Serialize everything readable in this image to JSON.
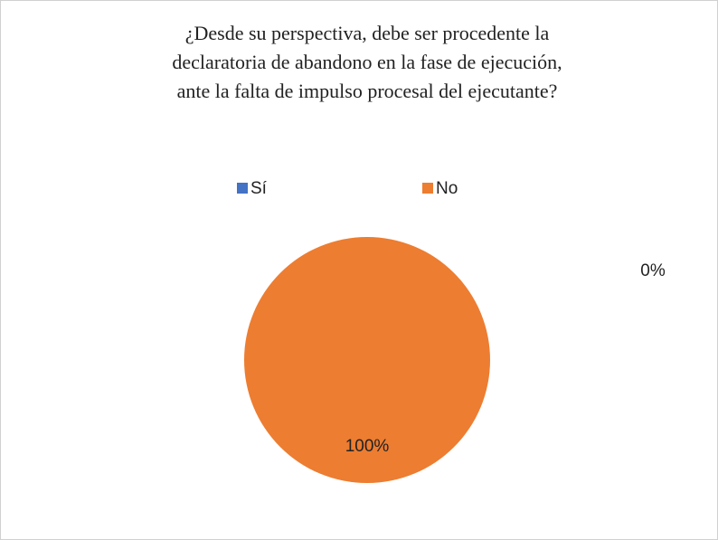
{
  "chart_data": {
    "type": "pie",
    "title": [
      "¿Desde su perspectiva, debe ser procedente la",
      "declaratoria de abandono en la fase de ejecución,",
      "ante la falta de impulso procesal del ejecutante?"
    ],
    "categories": [
      "Sí",
      "No"
    ],
    "values": [
      0,
      100
    ],
    "value_labels": [
      "0%",
      "100%"
    ],
    "colors": [
      "#4472c4",
      "#ed7d31"
    ],
    "legend": "top"
  }
}
